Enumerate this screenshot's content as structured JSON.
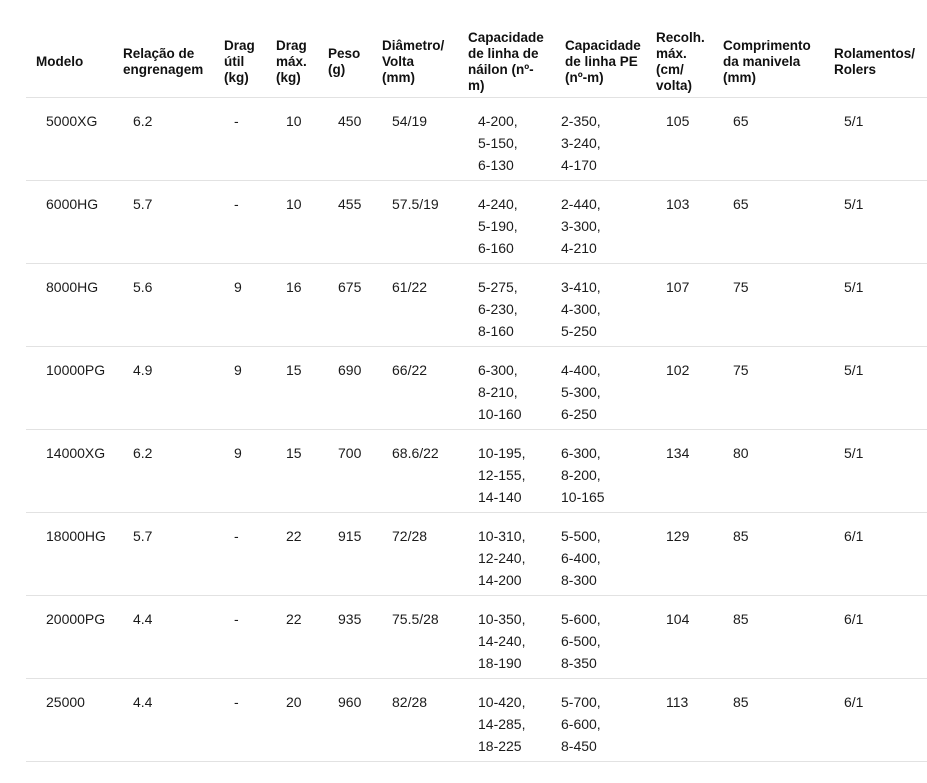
{
  "table": {
    "columns": [
      {
        "key": "modelo",
        "label": "Modelo"
      },
      {
        "key": "relacao",
        "label": "Relação de\nengrenagem"
      },
      {
        "key": "drag_util",
        "label": "Drag\nútil\n(kg)"
      },
      {
        "key": "drag_max",
        "label": "Drag\nmáx.\n(kg)"
      },
      {
        "key": "peso",
        "label": "Peso\n(g)"
      },
      {
        "key": "diametro",
        "label": "Diâmetro/\nVolta\n(mm)"
      },
      {
        "key": "nailon",
        "label": "Capacidade\nde linha de\nnáilon (nº-\nm)"
      },
      {
        "key": "pe",
        "label": "Capacidade\nde linha PE\n(nº-m)"
      },
      {
        "key": "recolh",
        "label": "Recolh.\nmáx.\n(cm/\nvolta)"
      },
      {
        "key": "manivela",
        "label": "Comprimento\nda manivela\n(mm)"
      },
      {
        "key": "rolamentos",
        "label": "Rolamentos/\nRolers"
      }
    ],
    "rows": [
      {
        "modelo": "5000XG",
        "relacao": "6.2",
        "drag_util": "-",
        "drag_max": "10",
        "peso": "450",
        "diametro": "54/19",
        "nailon": [
          "4-200,",
          "5-150,",
          "6-130"
        ],
        "pe": [
          "2-350,",
          "3-240,",
          "4-170"
        ],
        "recolh": "105",
        "manivela": "65",
        "rolamentos": "5/1"
      },
      {
        "modelo": "6000HG",
        "relacao": "5.7",
        "drag_util": "-",
        "drag_max": "10",
        "peso": "455",
        "diametro": "57.5/19",
        "nailon": [
          "4-240,",
          "5-190,",
          "6-160"
        ],
        "pe": [
          "2-440,",
          "3-300,",
          "4-210"
        ],
        "recolh": "103",
        "manivela": "65",
        "rolamentos": "5/1"
      },
      {
        "modelo": "8000HG",
        "relacao": "5.6",
        "drag_util": "9",
        "drag_max": "16",
        "peso": "675",
        "diametro": "61/22",
        "nailon": [
          "5-275,",
          "6-230,",
          "8-160"
        ],
        "pe": [
          "3-410,",
          "4-300,",
          "5-250"
        ],
        "recolh": "107",
        "manivela": "75",
        "rolamentos": "5/1"
      },
      {
        "modelo": "10000PG",
        "relacao": "4.9",
        "drag_util": "9",
        "drag_max": "15",
        "peso": "690",
        "diametro": "66/22",
        "nailon": [
          "6-300,",
          "8-210,",
          "10-160"
        ],
        "pe": [
          "4-400,",
          "5-300,",
          "6-250"
        ],
        "recolh": "102",
        "manivela": "75",
        "rolamentos": "5/1"
      },
      {
        "modelo": "14000XG",
        "relacao": "6.2",
        "drag_util": "9",
        "drag_max": "15",
        "peso": "700",
        "diametro": "68.6/22",
        "nailon": [
          "10-195,",
          "12-155,",
          "14-140"
        ],
        "pe": [
          "6-300,",
          "8-200,",
          "10-165"
        ],
        "recolh": "134",
        "manivela": "80",
        "rolamentos": "5/1"
      },
      {
        "modelo": "18000HG",
        "relacao": "5.7",
        "drag_util": "-",
        "drag_max": "22",
        "peso": "915",
        "diametro": "72/28",
        "nailon": [
          "10-310,",
          "12-240,",
          "14-200"
        ],
        "pe": [
          "5-500,",
          "6-400,",
          "8-300"
        ],
        "recolh": "129",
        "manivela": "85",
        "rolamentos": "6/1"
      },
      {
        "modelo": "20000PG",
        "relacao": "4.4",
        "drag_util": "-",
        "drag_max": "22",
        "peso": "935",
        "diametro": "75.5/28",
        "nailon": [
          "10-350,",
          "14-240,",
          "18-190"
        ],
        "pe": [
          "5-600,",
          "6-500,",
          "8-350"
        ],
        "recolh": "104",
        "manivela": "85",
        "rolamentos": "6/1"
      },
      {
        "modelo": "25000",
        "relacao": "4.4",
        "drag_util": "-",
        "drag_max": "20",
        "peso": "960",
        "diametro": "82/28",
        "nailon": [
          "10-420,",
          "14-285,",
          "18-225"
        ],
        "pe": [
          "5-700,",
          "6-600,",
          "8-450"
        ],
        "recolh": "113",
        "manivela": "85",
        "rolamentos": "6/1"
      }
    ],
    "colors": {
      "background": "#ffffff",
      "text": "#1b1b1b",
      "header_text": "#111111",
      "divider": "#e2e2e2"
    }
  }
}
